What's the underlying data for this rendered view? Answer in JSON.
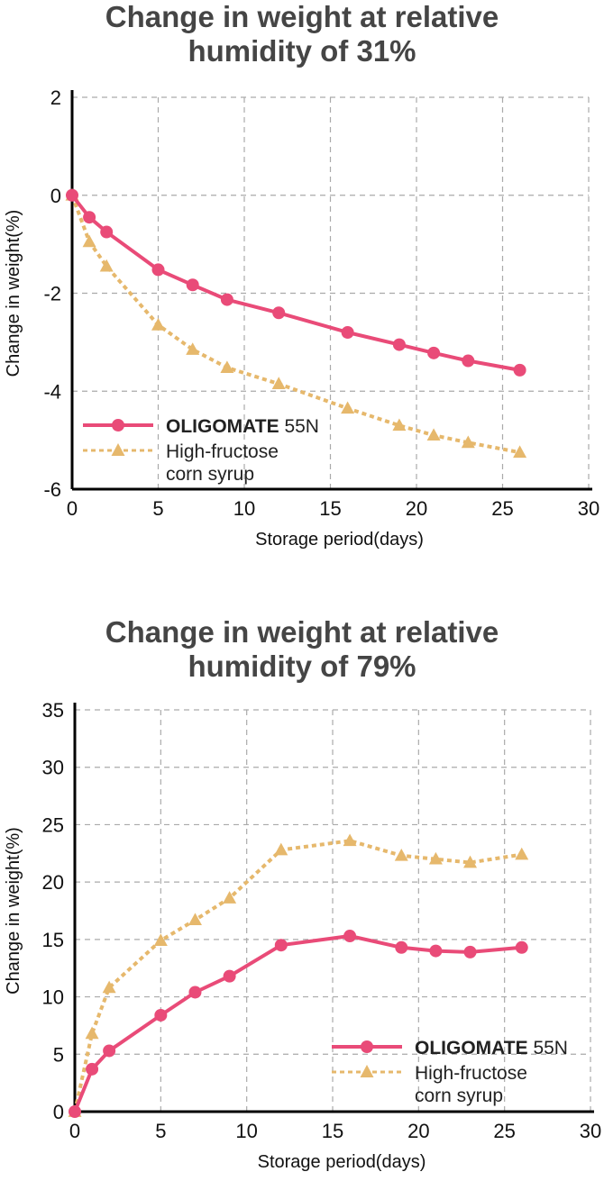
{
  "chart_data": [
    {
      "type": "line",
      "title_line1": "Change in weight at relative",
      "title_line2": "humidity of 31%",
      "xlabel": "Storage period(days)",
      "ylabel": "Change in weight(%)",
      "xlim": [
        0,
        30
      ],
      "ylim": [
        -6,
        2
      ],
      "xticks": [
        0,
        5,
        10,
        15,
        20,
        25,
        30
      ],
      "yticks": [
        -6,
        -4,
        -2,
        0,
        2
      ],
      "grid": true,
      "legend_position": "bottom-left",
      "series": [
        {
          "name_brand": "OLIGOMATE",
          "name_suffix": " 55N",
          "color": "#e94b78",
          "marker": "circle",
          "style": "solid",
          "x": [
            0,
            1,
            2,
            5,
            7,
            9,
            12,
            16,
            19,
            21,
            23,
            26
          ],
          "y": [
            0.0,
            -0.45,
            -0.75,
            -1.52,
            -1.83,
            -2.13,
            -2.4,
            -2.8,
            -3.05,
            -3.22,
            -3.38,
            -3.57
          ]
        },
        {
          "name_line1": "High-fructose",
          "name_line2": "corn syrup",
          "color": "#e6b86c",
          "marker": "triangle",
          "style": "dotted",
          "x": [
            0,
            1,
            2,
            5,
            7,
            9,
            12,
            16,
            19,
            21,
            23,
            26
          ],
          "y": [
            0.0,
            -0.95,
            -1.45,
            -2.65,
            -3.15,
            -3.52,
            -3.85,
            -4.35,
            -4.7,
            -4.9,
            -5.05,
            -5.25
          ]
        }
      ]
    },
    {
      "type": "line",
      "title_line1": "Change in weight at relative",
      "title_line2": "humidity of 79%",
      "xlabel": "Storage period(days)",
      "ylabel": "Change in weight(%)",
      "xlim": [
        0,
        30
      ],
      "ylim": [
        0,
        35
      ],
      "xticks": [
        0,
        5,
        10,
        15,
        20,
        25,
        30
      ],
      "yticks": [
        0,
        5,
        10,
        15,
        20,
        25,
        30,
        35
      ],
      "grid": true,
      "legend_position": "bottom-right",
      "series": [
        {
          "name_brand": "OLIGOMATE",
          "name_suffix": " 55N",
          "color": "#e94b78",
          "marker": "circle",
          "style": "solid",
          "x": [
            0,
            1,
            2,
            5,
            7,
            9,
            12,
            16,
            19,
            21,
            23,
            26
          ],
          "y": [
            0.0,
            3.7,
            5.3,
            8.4,
            10.4,
            11.8,
            14.5,
            15.3,
            14.3,
            14.0,
            13.9,
            14.3
          ]
        },
        {
          "name_line1": "High-fructose",
          "name_line2": "corn syrup",
          "color": "#e6b86c",
          "marker": "triangle",
          "style": "dotted",
          "x": [
            0,
            1,
            2,
            5,
            7,
            9,
            12,
            16,
            19,
            21,
            23,
            26
          ],
          "y": [
            0.0,
            6.8,
            10.8,
            14.9,
            16.7,
            18.6,
            22.8,
            23.6,
            22.3,
            22.0,
            21.7,
            22.4
          ]
        }
      ]
    }
  ]
}
